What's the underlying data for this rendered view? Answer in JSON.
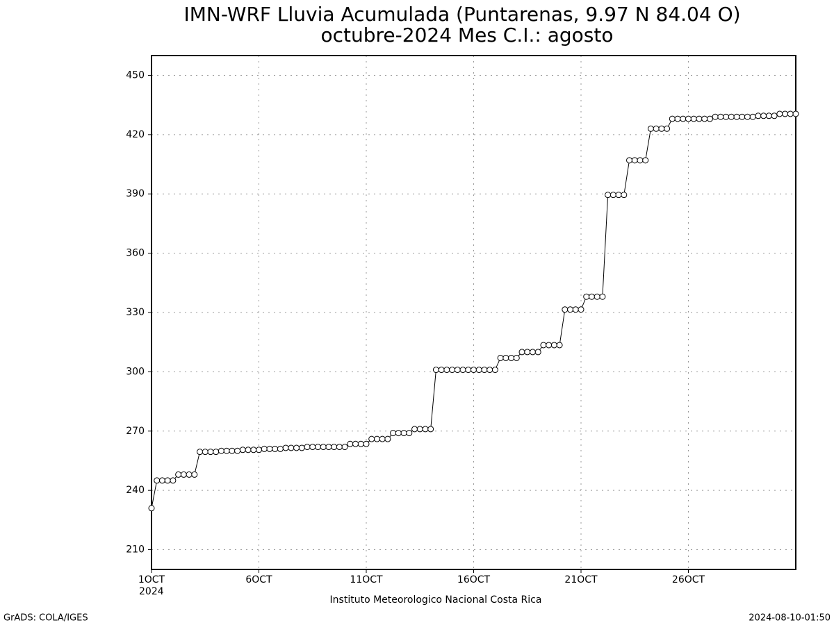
{
  "chart_data": {
    "type": "line",
    "title": "IMN-WRF  Lluvia Acumulada (Puntarenas, 9.97  N 84.04  O)",
    "subtitle": "octubre-2024 Mes C.I.: agosto",
    "x_label": "Instituto Meteorologico Nacional Costa Rica",
    "x_sublabel": "2024",
    "footer_left": "GrADS: COLA/IGES",
    "footer_right": "2024-08-10-01:50",
    "color": "#000000",
    "marker": "circle",
    "grid": true,
    "xlim": [
      0,
      30
    ],
    "xticks": [
      {
        "value": 0,
        "label": "1OCT"
      },
      {
        "value": 5,
        "label": "6OCT"
      },
      {
        "value": 10,
        "label": "11OCT"
      },
      {
        "value": 15,
        "label": "16OCT"
      },
      {
        "value": 20,
        "label": "21OCT"
      },
      {
        "value": 25,
        "label": "26OCT"
      }
    ],
    "ylim": [
      200,
      460
    ],
    "yticks": [
      210,
      240,
      270,
      300,
      330,
      360,
      390,
      420,
      450
    ],
    "x": [
      0,
      0.25,
      0.5,
      0.75,
      1,
      1.25,
      1.5,
      1.75,
      2,
      2.25,
      2.5,
      2.75,
      3,
      3.25,
      3.5,
      3.75,
      4,
      4.25,
      4.5,
      4.75,
      5,
      5.25,
      5.5,
      5.75,
      6,
      6.25,
      6.5,
      6.75,
      7,
      7.25,
      7.5,
      7.75,
      8,
      8.25,
      8.5,
      8.75,
      9,
      9.25,
      9.5,
      9.75,
      10,
      10.25,
      10.5,
      10.75,
      11,
      11.25,
      11.5,
      11.75,
      12,
      12.25,
      12.5,
      12.75,
      13,
      13.25,
      13.5,
      13.75,
      14,
      14.25,
      14.5,
      14.75,
      15,
      15.25,
      15.5,
      15.75,
      16,
      16.25,
      16.5,
      16.75,
      17,
      17.25,
      17.5,
      17.75,
      18,
      18.25,
      18.5,
      18.75,
      19,
      19.25,
      19.5,
      19.75,
      20,
      20.25,
      20.5,
      20.75,
      21,
      21.25,
      21.5,
      21.75,
      22,
      22.25,
      22.5,
      22.75,
      23,
      23.25,
      23.5,
      23.75,
      24,
      24.25,
      24.5,
      24.75,
      25,
      25.25,
      25.5,
      25.75,
      26,
      26.25,
      26.5,
      26.75,
      27,
      27.25,
      27.5,
      27.75,
      28,
      28.25,
      28.5,
      28.75,
      29,
      29.25,
      29.5,
      29.75,
      30
    ],
    "values": [
      231,
      245,
      245,
      245,
      245,
      248,
      248,
      248,
      248,
      259.5,
      259.5,
      259.5,
      259.5,
      260,
      260,
      260,
      260,
      260.5,
      260.5,
      260.5,
      260.5,
      261,
      261,
      261,
      261,
      261.5,
      261.5,
      261.5,
      261.5,
      262,
      262,
      262,
      262,
      262,
      262,
      262,
      262,
      263.5,
      263.5,
      263.5,
      263.5,
      266,
      266,
      266,
      266,
      269,
      269,
      269,
      269,
      271,
      271,
      271,
      271,
      301,
      301,
      301,
      301,
      301,
      301,
      301,
      301,
      301,
      301,
      301,
      301,
      307,
      307,
      307,
      307,
      310,
      310,
      310,
      310,
      313.5,
      313.5,
      313.5,
      313.5,
      331.5,
      331.5,
      331.5,
      331.5,
      338,
      338,
      338,
      338,
      389.5,
      389.5,
      389.5,
      389.5,
      407,
      407,
      407,
      407,
      423,
      423,
      423,
      423,
      428,
      428,
      428,
      428,
      428,
      428,
      428,
      428,
      429,
      429,
      429,
      429,
      429,
      429,
      429,
      429,
      429.5,
      429.5,
      429.5,
      429.5,
      430.5,
      430.5,
      430.5,
      430.5
    ]
  }
}
